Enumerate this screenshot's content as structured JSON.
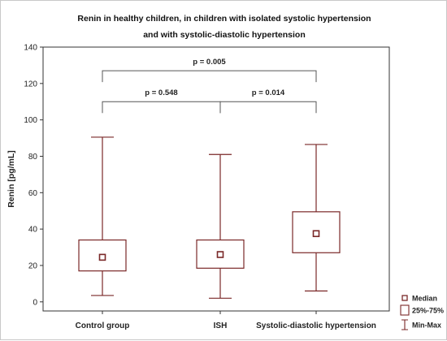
{
  "chart_data": {
    "type": "box",
    "title": "Renin in healthy children, in children with isolated systolic hypertension",
    "subtitle": "and with systolic-diastolic hypertension",
    "ylabel": "Renin [pg/mL]",
    "xlabel": "",
    "ylim": [
      -5,
      140
    ],
    "yticks": [
      0,
      20,
      40,
      60,
      80,
      100,
      120,
      140
    ],
    "grid": false,
    "legend_position": "bottom-right",
    "categories": [
      "Control group",
      "ISH",
      "Systolic-diastolic hypertension"
    ],
    "boxes": [
      {
        "category": "Control group",
        "min": 3.5,
        "q1": 17,
        "median": 24.5,
        "q3": 34,
        "max": 90.5
      },
      {
        "category": "ISH",
        "min": 2,
        "q1": 18.5,
        "median": 26,
        "q3": 34,
        "max": 81
      },
      {
        "category": "Systolic-diastolic hypertension",
        "min": 6,
        "q1": 27,
        "median": 37.5,
        "q3": 49.5,
        "max": 86.5
      }
    ],
    "legend": [
      {
        "key": "median",
        "label": "Median"
      },
      {
        "key": "box",
        "label": "25%-75%"
      },
      {
        "key": "whisker",
        "label": "Min-Max"
      }
    ],
    "annotations": [
      {
        "from": 0,
        "to": 1,
        "y": 110,
        "label": "p = 0.548"
      },
      {
        "from": 1,
        "to": 2,
        "y": 110,
        "label": "p = 0.014"
      },
      {
        "from": 0,
        "to": 2,
        "y": 127,
        "label": "p = 0.005"
      }
    ],
    "colors": {
      "box": "#7a2828",
      "median_fill": "#ffffff",
      "bracket": "#555555",
      "axis": "#333333"
    }
  }
}
